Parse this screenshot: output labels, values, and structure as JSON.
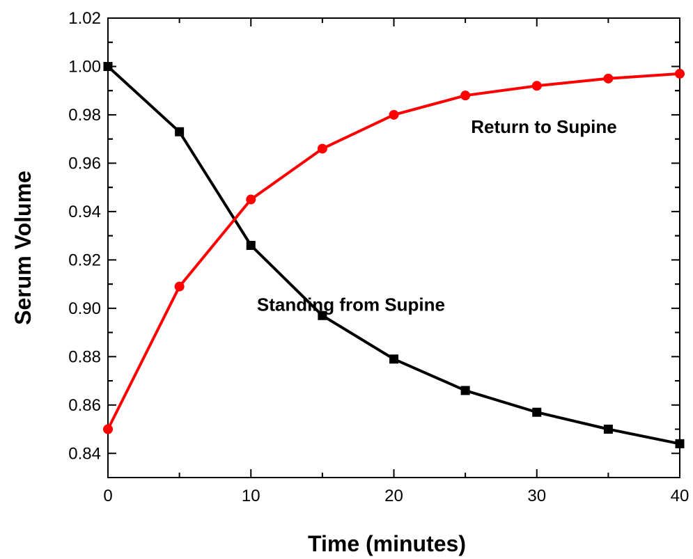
{
  "chart_data": {
    "type": "line",
    "xlabel": "Time (minutes)",
    "ylabel": "Serum Volume",
    "xlim": [
      0,
      40
    ],
    "ylim": [
      0.83,
      1.02
    ],
    "x_ticks": [
      0,
      10,
      20,
      30,
      40
    ],
    "y_ticks": [
      0.84,
      0.86,
      0.88,
      0.9,
      0.92,
      0.94,
      0.96,
      0.98,
      1.0,
      1.02
    ],
    "x_tick_labels": [
      "0",
      "10",
      "20",
      "30",
      "40"
    ],
    "y_tick_labels": [
      "0.84",
      "0.86",
      "0.88",
      "0.90",
      "0.92",
      "0.94",
      "0.96",
      "0.98",
      "1.00",
      "1.02"
    ],
    "grid": false,
    "series": [
      {
        "name": "Standing from Supine",
        "color": "#000000",
        "marker": "square",
        "x": [
          0,
          5,
          10,
          15,
          20,
          25,
          30,
          35,
          40
        ],
        "y": [
          1.0,
          0.973,
          0.926,
          0.897,
          0.879,
          0.866,
          0.857,
          0.85,
          0.844
        ]
      },
      {
        "name": "Return to Supine",
        "color": "#ff0000",
        "marker": "circle",
        "x": [
          0,
          5,
          10,
          15,
          20,
          25,
          30,
          35,
          40
        ],
        "y": [
          0.85,
          0.909,
          0.945,
          0.966,
          0.98,
          0.988,
          0.992,
          0.995,
          0.997
        ]
      }
    ],
    "annotations": [
      {
        "text": "Return to Supine",
        "x": 30.5,
        "y": 0.9725
      },
      {
        "text": "Standing from Supine",
        "x": 17,
        "y": 0.899
      }
    ]
  }
}
